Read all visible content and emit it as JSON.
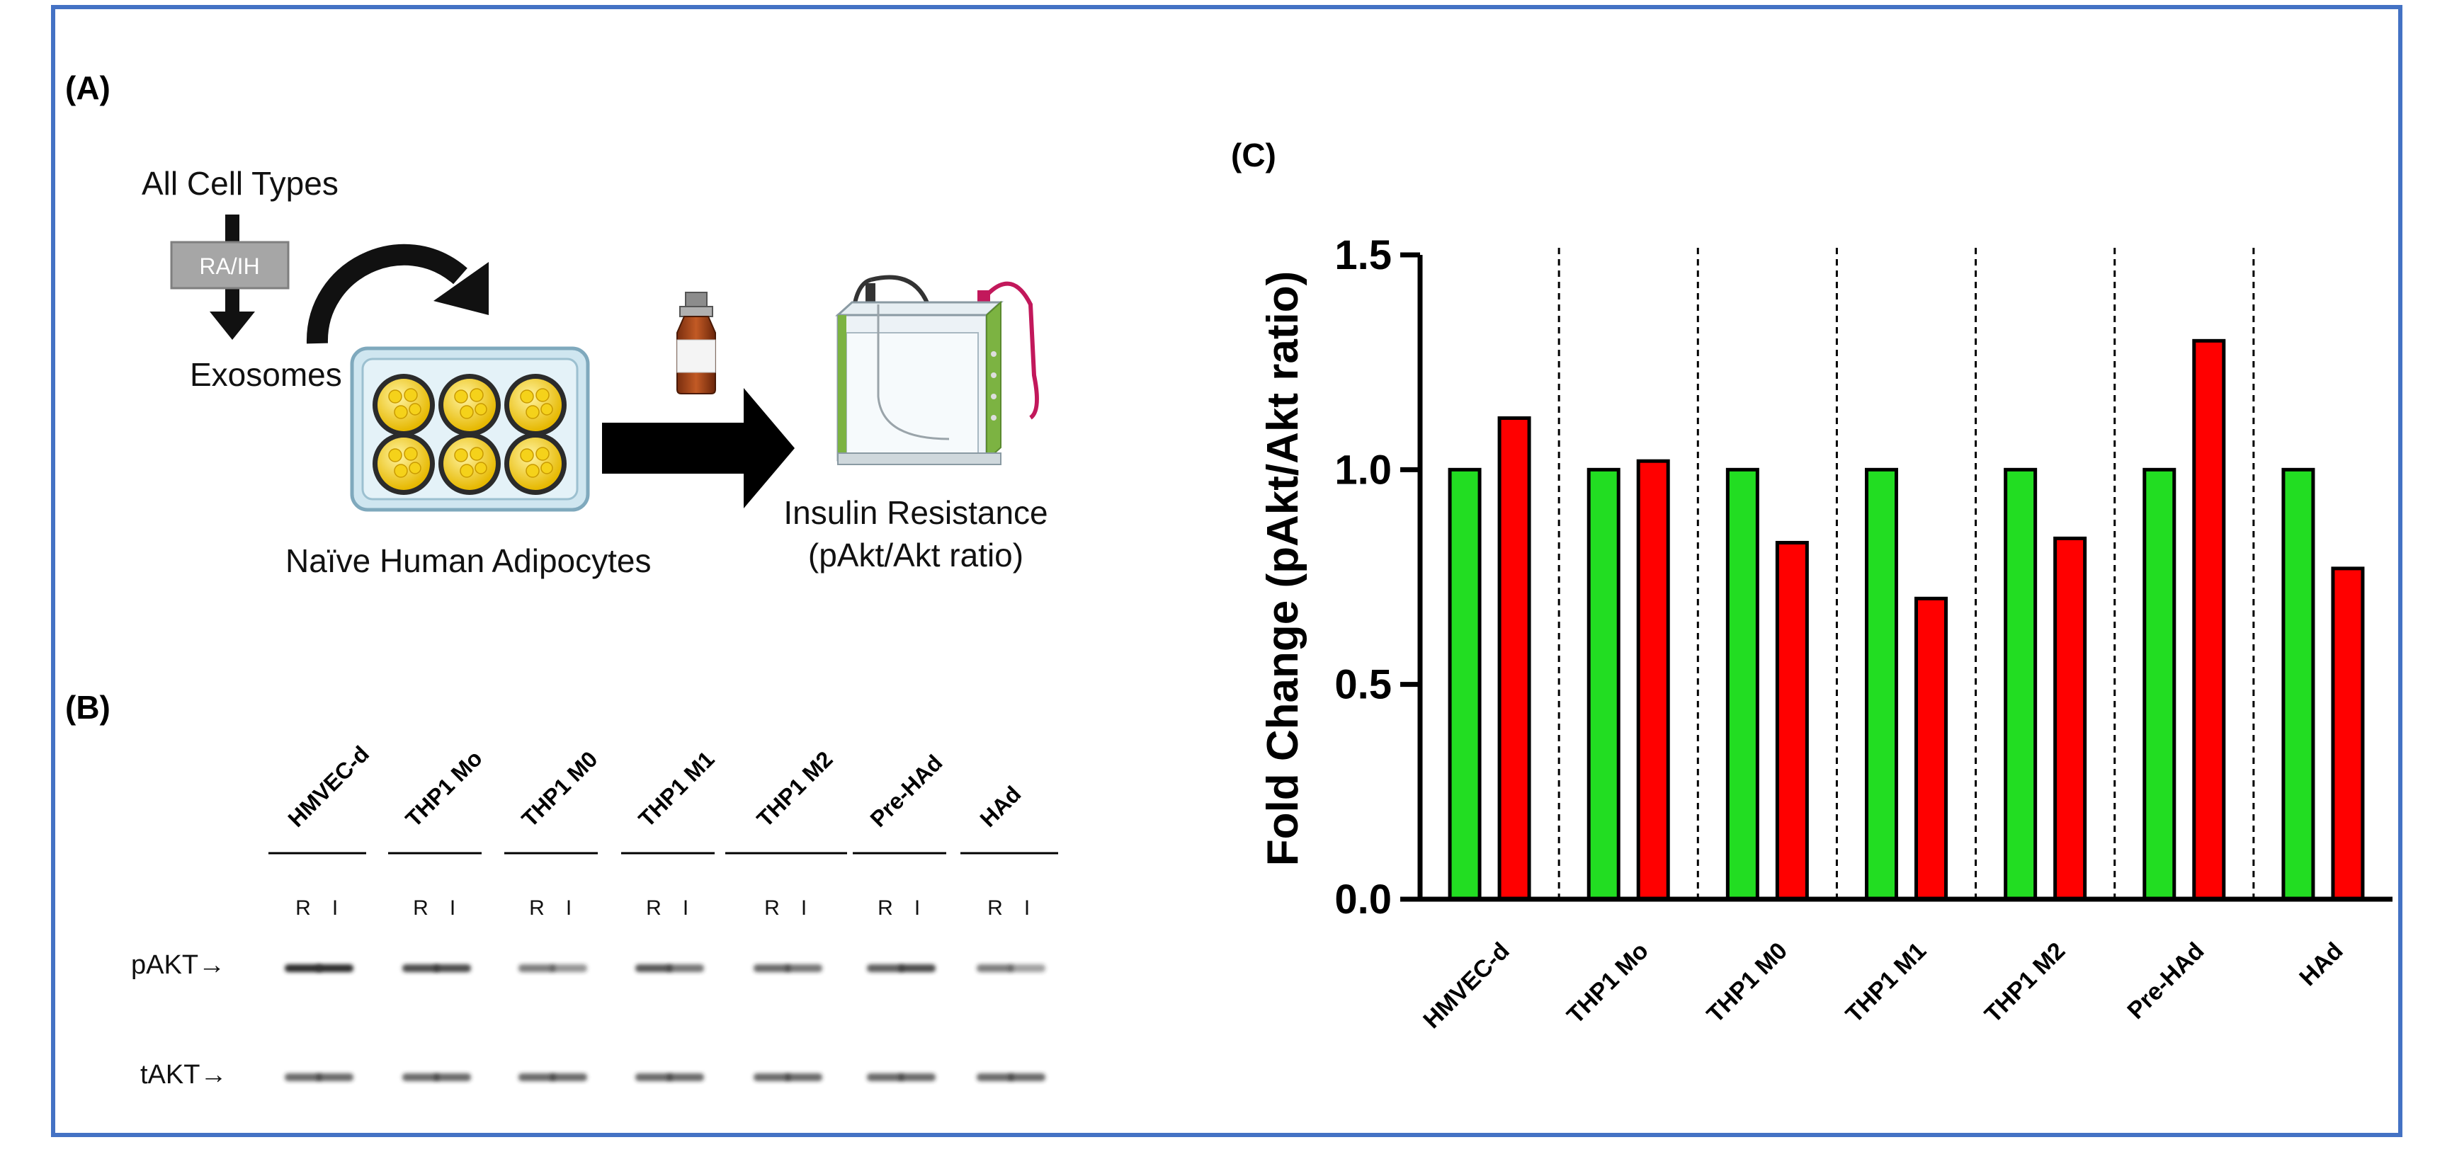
{
  "panels": {
    "a": "(A)",
    "b": "(B)",
    "c": "(C)"
  },
  "schematic": {
    "source_label": "All Cell Types",
    "treatment_label": "RA/IH",
    "exosomes_label": "Exosomes",
    "adipocytes_label": "Naïve Human Adipocytes",
    "assay_line1": "Insulin Resistance",
    "assay_line2": "(pAkt/Akt ratio)"
  },
  "blot": {
    "lanes": [
      "HMVEC-d",
      "THP1 Mo",
      "THP1 M0",
      "THP1 M1",
      "THP1 M2",
      "Pre-HAd",
      "HAd"
    ],
    "sub_labels": [
      "R",
      "I"
    ],
    "row_labels": [
      "pAKT→",
      "tAKT→"
    ]
  },
  "colors": {
    "frame": "#4472c4",
    "series_ra": "#22dd22",
    "series_ih": "#ff0000",
    "bar_outline": "#000000",
    "band": "#2a2a2a"
  },
  "chart_data": {
    "type": "bar",
    "title": "",
    "xlabel": "",
    "ylabel": "Fold Change (pAkt/Akt ratio)",
    "ylim": [
      0,
      1.5
    ],
    "yticks": [
      "0.0",
      "0.5",
      "1.0",
      "1.5"
    ],
    "grid": false,
    "categories": [
      "HMVEC-d",
      "THP1 Mo",
      "THP1 M0",
      "THP1 M1",
      "THP1 M2",
      "Pre-HAd",
      "HAd"
    ],
    "series": [
      {
        "name": "R",
        "values": [
          1.0,
          1.0,
          1.0,
          1.0,
          1.0,
          1.0,
          1.0
        ]
      },
      {
        "name": "I",
        "values": [
          1.12,
          1.02,
          0.83,
          0.7,
          0.84,
          1.3,
          0.77
        ]
      }
    ]
  }
}
